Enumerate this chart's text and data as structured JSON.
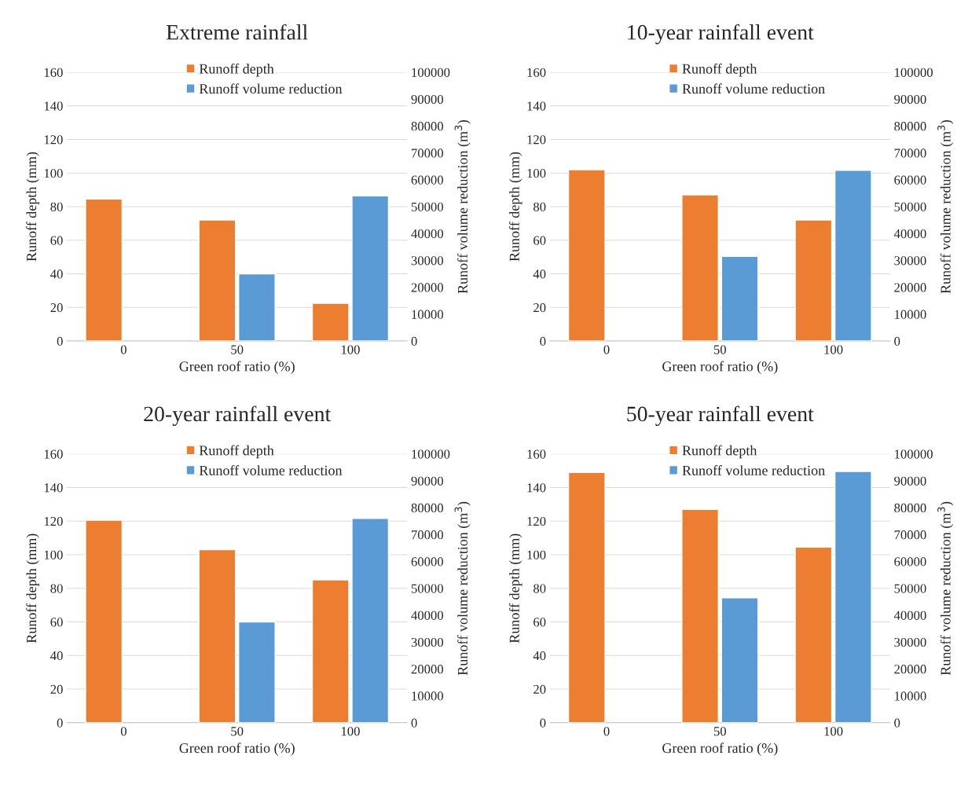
{
  "chart_data": [
    {
      "type": "bar",
      "title": "Extreme rainfall",
      "xlabel": "Green roof ratio (%)",
      "ylabel": "Runoff depth (mm)",
      "y2label": "Runoff volume reduction (m$^{3}$)",
      "categories": [
        "0",
        "50",
        "100"
      ],
      "series": [
        {
          "name": "Runoff depth",
          "color": "#ed7d31",
          "values": [
            84.5,
            72,
            22.5
          ]
        },
        {
          "name": "Runoff volume reduction",
          "color": "#5b9bd5",
          "axis": "y2",
          "values": [
            null,
            25000,
            54000
          ]
        }
      ],
      "ylim": [
        0,
        160
      ],
      "yticks": [
        0,
        20,
        40,
        60,
        80,
        100,
        120,
        140,
        160
      ],
      "y2lim": [
        0,
        100000
      ],
      "y2ticks": [
        0,
        10000,
        20000,
        30000,
        40000,
        50000,
        60000,
        70000,
        80000,
        90000,
        100000
      ],
      "grid": "y",
      "legend": "top"
    },
    {
      "type": "bar",
      "title": "10-year rainfall event",
      "xlabel": "Green roof ratio (%)",
      "ylabel": "Runoff depth (mm)",
      "y2label": "Runoff volume reduction (m$^{3}$)",
      "categories": [
        "0",
        "50",
        "100"
      ],
      "series": [
        {
          "name": "Runoff depth",
          "color": "#ed7d31",
          "values": [
            102,
            87,
            72
          ]
        },
        {
          "name": "Runoff volume reduction",
          "color": "#5b9bd5",
          "axis": "y2",
          "values": [
            null,
            31500,
            63500
          ]
        }
      ],
      "ylim": [
        0,
        160
      ],
      "yticks": [
        0,
        20,
        40,
        60,
        80,
        100,
        120,
        140,
        160
      ],
      "y2lim": [
        0,
        100000
      ],
      "y2ticks": [
        0,
        10000,
        20000,
        30000,
        40000,
        50000,
        60000,
        70000,
        80000,
        90000,
        100000
      ],
      "grid": "y",
      "legend": "top"
    },
    {
      "type": "bar",
      "title": "20-year rainfall event",
      "xlabel": "Green roof ratio (%)",
      "ylabel": "Runoff depth (mm)",
      "y2label": "Runoff volume reduction (m$^{3}$)",
      "categories": [
        "0",
        "50",
        "100"
      ],
      "series": [
        {
          "name": "Runoff depth",
          "color": "#ed7d31",
          "values": [
            120.5,
            103,
            85
          ]
        },
        {
          "name": "Runoff volume reduction",
          "color": "#5b9bd5",
          "axis": "y2",
          "values": [
            null,
            37500,
            76000
          ]
        }
      ],
      "ylim": [
        0,
        160
      ],
      "yticks": [
        0,
        20,
        40,
        60,
        80,
        100,
        120,
        140,
        160
      ],
      "y2lim": [
        0,
        100000
      ],
      "y2ticks": [
        0,
        10000,
        20000,
        30000,
        40000,
        50000,
        60000,
        70000,
        80000,
        90000,
        100000
      ],
      "grid": "y",
      "legend": "top"
    },
    {
      "type": "bar",
      "title": "50-year rainfall event",
      "xlabel": "Green roof ratio (%)",
      "ylabel": "Runoff depth (mm)",
      "y2label": "Runoff volume reduction (m$^{3}$)",
      "categories": [
        "0",
        "50",
        "100"
      ],
      "series": [
        {
          "name": "Runoff depth",
          "color": "#ed7d31",
          "values": [
            149,
            127,
            104.5
          ]
        },
        {
          "name": "Runoff volume reduction",
          "color": "#5b9bd5",
          "axis": "y2",
          "values": [
            null,
            46500,
            93500
          ]
        }
      ],
      "ylim": [
        0,
        160
      ],
      "yticks": [
        0,
        20,
        40,
        60,
        80,
        100,
        120,
        140,
        160
      ],
      "y2lim": [
        0,
        100000
      ],
      "y2ticks": [
        0,
        10000,
        20000,
        30000,
        40000,
        50000,
        60000,
        70000,
        80000,
        90000,
        100000
      ],
      "grid": "y",
      "legend": "top"
    }
  ]
}
